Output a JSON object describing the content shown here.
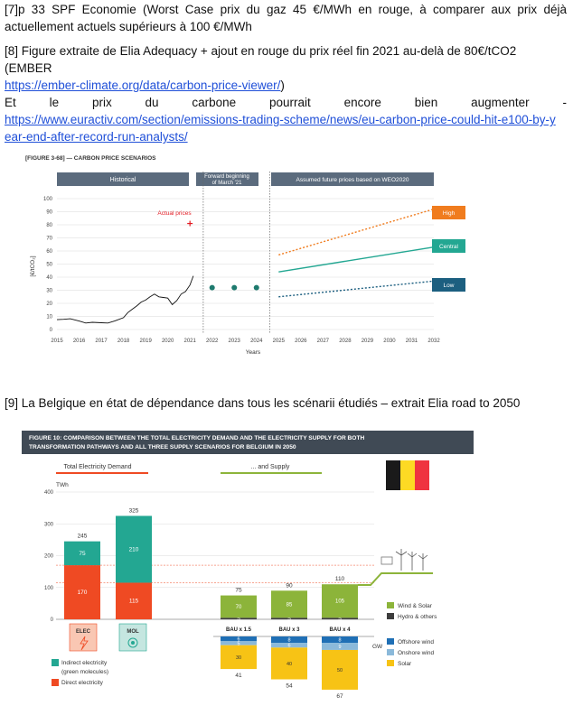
{
  "notes": {
    "n7_line1": "[7]p 33 SPF Economie (Worst Case prix du gaz 45 €/MWh en rouge, à comparer aux prix déjà",
    "n7_line2": "actuellement actuels supérieurs à 100 €/MWh",
    "n8_line1": "[8] Figure extraite de Elia Adequacy + ajout en rouge du prix réel fin 2021 au-delà de 80€/tCO2 (EMBER",
    "n8_link1": "https://ember-climate.org/data/carbon-price-viewer/",
    "n8_link1_close": ")",
    "n8_line3": "Et le prix du carbone pourrait encore bien augmenter -",
    "n8_link2a": "https://www.euractiv.com/section/emissions-trading-scheme/news/eu-carbon-price-could-hit-e100-by-y",
    "n8_link2b": "ear-end-after-record-run-analysts/",
    "n9_line": "[9] La Belgique en état de dépendance dans tous les scénarii étudiés – extrait Elia road to 2050"
  },
  "fig1": {
    "title": "[FIGURE 3-68] — CARBON PRICE SCENARIOS",
    "header_historical": "Historical",
    "header_forward_1": "Forward beginning",
    "header_forward_2": "of March '21",
    "header_assumed": "Assumed future prices based on WEO2020",
    "actual_prices_label": "Actual prices",
    "ylabel": "[€/tCO₂]",
    "xlabel": "Years",
    "badge_high": "High",
    "badge_central": "Central",
    "badge_low": "Low",
    "colors": {
      "header": "#5b6b7d",
      "high": "#f07c1e",
      "central": "#23a792",
      "low": "#1c5f80",
      "red": "#e31b23"
    }
  },
  "chart_data": [
    {
      "type": "line",
      "title": "[FIGURE 3-68] — CARBON PRICE SCENARIOS",
      "xlabel": "Years",
      "ylabel": "[€/tCO₂]",
      "xlim": [
        2015,
        2032
      ],
      "ylim": [
        0,
        100
      ],
      "x_ticks": [
        2015,
        2016,
        2017,
        2018,
        2019,
        2020,
        2021,
        2022,
        2023,
        2024,
        2025,
        2026,
        2027,
        2028,
        2029,
        2030,
        2031,
        2032
      ],
      "y_ticks": [
        0,
        10,
        20,
        30,
        40,
        50,
        60,
        70,
        80,
        90,
        100
      ],
      "historical": {
        "x": [
          2015.0,
          2015.3,
          2015.6,
          2016.0,
          2016.3,
          2016.6,
          2017.0,
          2017.3,
          2017.6,
          2018.0,
          2018.2,
          2018.4,
          2018.6,
          2018.8,
          2019.0,
          2019.2,
          2019.4,
          2019.6,
          2019.8,
          2020.0,
          2020.2,
          2020.4,
          2020.6,
          2020.8,
          2021.0,
          2021.15
        ],
        "y": [
          7.5,
          7.8,
          8.2,
          6.5,
          5.0,
          5.5,
          5.2,
          5.0,
          6.5,
          9.0,
          13.0,
          15.5,
          18.0,
          21.0,
          22.5,
          25.0,
          27.0,
          25.0,
          24.5,
          24.0,
          19.0,
          22.0,
          27.0,
          29.0,
          34.0,
          41.0
        ]
      },
      "forward_points": {
        "x": [
          2022,
          2023,
          2024
        ],
        "y": [
          32,
          32,
          32
        ]
      },
      "actual_price_marker": {
        "x": 2021,
        "y": 81,
        "label": "Actual prices"
      },
      "series": [
        {
          "name": "High",
          "x": [
            2025,
            2032
          ],
          "y": [
            57,
            92
          ]
        },
        {
          "name": "Central",
          "x": [
            2025,
            2032
          ],
          "y": [
            44,
            63
          ]
        },
        {
          "name": "Low",
          "x": [
            2025,
            2032
          ],
          "y": [
            25,
            37
          ]
        }
      ]
    },
    {
      "type": "bar",
      "title": "FIGURE 10: COMPARISON BETWEEN THE TOTAL ELECTRICITY DEMAND AND THE ELECTRICITY SUPPLY FOR BOTH TRANSFORMATION PATHWAYS AND ALL THREE SUPPLY SCENARIOS FOR BELGIUM IN 2050",
      "ylabel": "TWh",
      "ylim": [
        0,
        400
      ],
      "y_ticks": [
        0,
        100,
        200,
        300,
        400
      ],
      "demand": {
        "categories": [
          "ELEC",
          "MOL"
        ],
        "series": [
          {
            "name": "Direct electricity",
            "values": [
              170,
              115
            ]
          },
          {
            "name": "Indirect electricity (green molecules)",
            "values": [
              75,
              210
            ]
          }
        ],
        "totals": [
          245,
          325
        ]
      },
      "supply": {
        "categories": [
          "BAU x 1.5",
          "BAU x 3",
          "BAU x 4"
        ],
        "series": [
          {
            "name": "Hydro & others",
            "values": [
              5,
              5,
              5
            ]
          },
          {
            "name": "Wind & Solar",
            "values": [
              70,
              85,
              105
            ]
          }
        ],
        "totals": [
          75,
          90,
          110
        ]
      },
      "capacity_gw": {
        "categories": [
          "BAU x 1.5",
          "BAU x 3",
          "BAU x 4"
        ],
        "series": [
          {
            "name": "Offshore wind",
            "values": [
              6,
              8,
              8
            ]
          },
          {
            "name": "Onshore wind",
            "values": [
              5,
              6,
              9
            ]
          },
          {
            "name": "Solar",
            "values": [
              30,
              40,
              50
            ]
          }
        ],
        "totals": [
          41,
          54,
          67
        ]
      }
    }
  ],
  "fig2": {
    "title_line1": "FIGURE 10: COMPARISON BETWEEN THE TOTAL ELECTRICITY DEMAND AND THE ELECTRICITY SUPPLY FOR BOTH",
    "title_line2": "TRANSFORMATION PATHWAYS AND ALL THREE SUPPLY SCENARIOS FOR BELGIUM IN 2050",
    "section_demand": "Total Electricity Demand",
    "section_supply": "... and Supply",
    "unit_twh": "TWh",
    "unit_gw": "GW",
    "legend_indirect_1": "Indirect electricity",
    "legend_indirect_2": "(green molecules)",
    "legend_direct": "Direct electricity",
    "legend_wind_solar": "Wind & Solar",
    "legend_hydro": "Hydro & others",
    "legend_offshore": "Offshore wind",
    "legend_onshore": "Onshore wind",
    "legend_solar": "Solar",
    "icon_elec": "ELEC",
    "icon_mol": "MOL",
    "colors": {
      "title_bg": "#404a55",
      "direct": "#ef4a23",
      "indirect": "#23a792",
      "wind_solar": "#8cb43a",
      "hydro": "#3d3d3d",
      "offshore": "#1f6fb5",
      "onshore": "#8bb9da",
      "solar": "#f7c315",
      "flag_black": "#1a1a1a",
      "flag_yellow": "#fdda24",
      "flag_red": "#ef3340"
    }
  }
}
